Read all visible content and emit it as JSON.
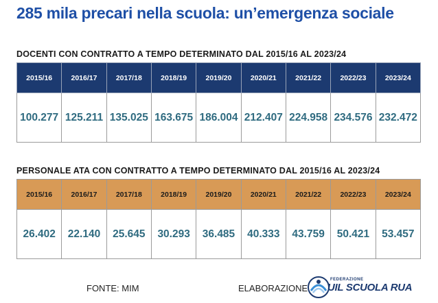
{
  "title": "285 mila precari nella scuola: un’emergenza sociale",
  "docenti": {
    "heading": "DOCENTI CON CONTRATTO A TEMPO DETERMINATO DAL 2015/16 AL 2023/24",
    "years": [
      "2015/16",
      "2016/17",
      "2017/18",
      "2018/19",
      "2019/20",
      "2020/21",
      "2021/22",
      "2022/23",
      "2023/24"
    ],
    "values": [
      "100.277",
      "125.211",
      "135.025",
      "163.675",
      "186.004",
      "212.407",
      "224.958",
      "234.576",
      "232.472"
    ],
    "header_color": "#1c3a70"
  },
  "ata": {
    "heading": "PERSONALE ATA CON CONTRATTO A TEMPO DETERMINATO DAL 2015/16 AL 2023/24",
    "years": [
      "2015/16",
      "2016/17",
      "2017/18",
      "2018/19",
      "2019/20",
      "2020/21",
      "2021/22",
      "2022/23",
      "2023/24"
    ],
    "values": [
      "26.402",
      "22.140",
      "25.645",
      "30.293",
      "36.485",
      "40.333",
      "43.759",
      "50.421",
      "53.457"
    ],
    "header_color": "#d89a56"
  },
  "footer": {
    "source": "FONTE: MIM",
    "elaboration": "ELABORAZIONE",
    "logo_federation": "FEDERAZIONE",
    "logo_name": "UIL SCUOLA RUA"
  },
  "colors": {
    "title": "#1e4fa6",
    "values": "#2f6b80"
  }
}
